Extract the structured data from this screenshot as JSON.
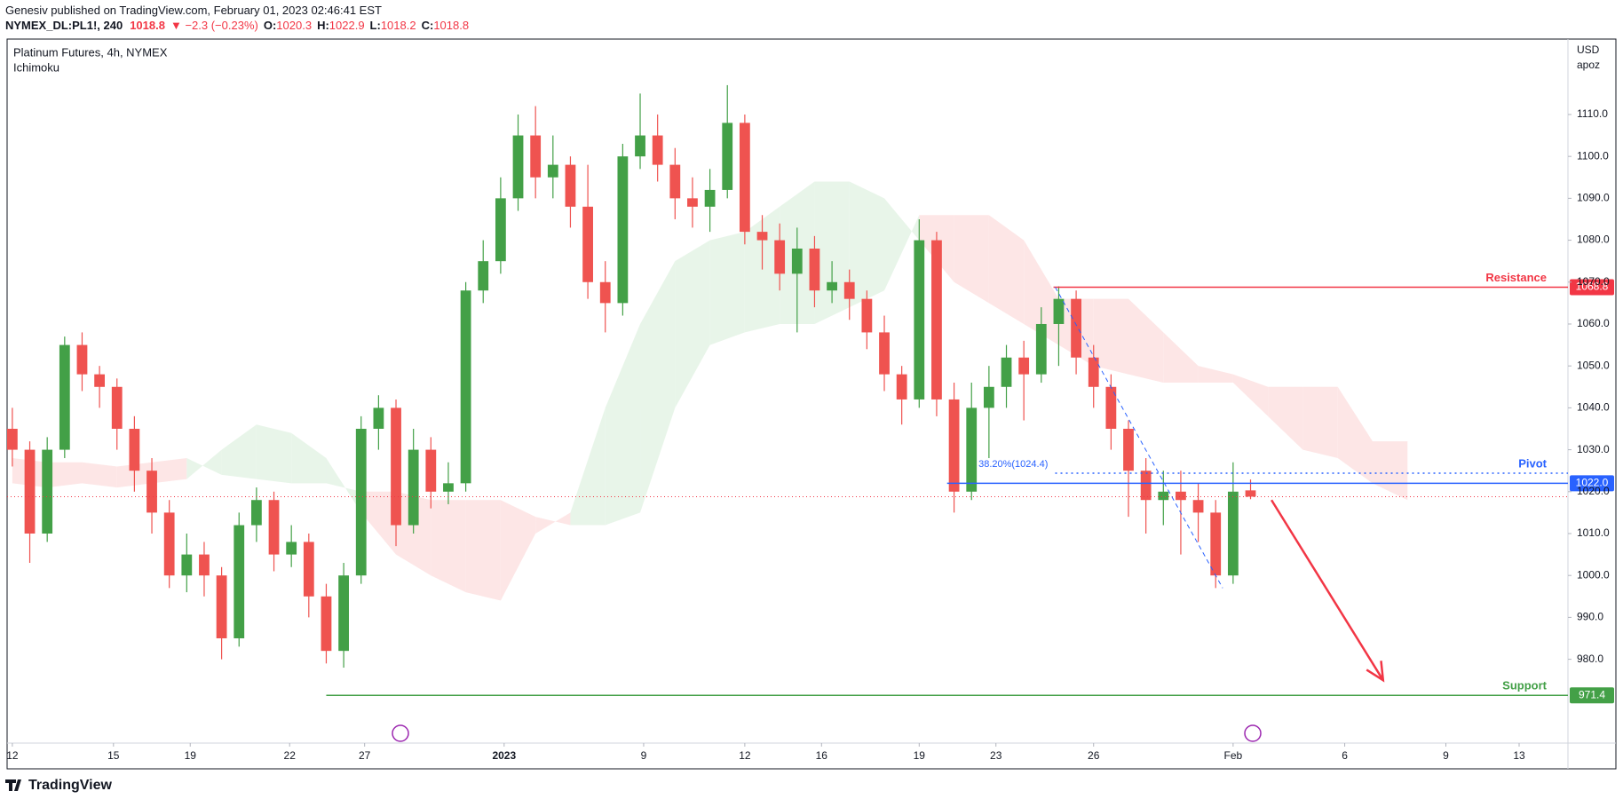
{
  "header": {
    "publisher": "Genesiv published on TradingView.com, February 01, 2023 02:46:41 EST",
    "symbol": "NYMEX_DL:PL1!, 240",
    "price": 1018.8,
    "change": "▼ −2.3 (−0.23%)",
    "ohlc": [
      {
        "label": "O:",
        "value": 1020.3
      },
      {
        "label": "H:",
        "value": 1022.9
      },
      {
        "label": "L:",
        "value": 1018.2
      },
      {
        "label": "C:",
        "value": 1018.8
      }
    ]
  },
  "footer": {
    "brand": "TradingView"
  },
  "chart_data": {
    "type": "candlestick",
    "title": "Platinum Futures, 4h, NYMEX",
    "indicator": "Ichimoku",
    "currency": "USD",
    "author_tag": "apoz",
    "up_color": "#43a047",
    "down_color": "#ef5350",
    "x": [
      0,
      0.5,
      1,
      1.5,
      2,
      2.5,
      3,
      3.5,
      4,
      4.5,
      5,
      5.5,
      6,
      6.5,
      7,
      7.5,
      8,
      8.5,
      9,
      9.5,
      10,
      10.5,
      11,
      11.5,
      12,
      12.5,
      13,
      13.5,
      14,
      14.5,
      15,
      15.5,
      16,
      16.5,
      17,
      17.5,
      18,
      18.5,
      19,
      19.5,
      20,
      20.5,
      21,
      21.5,
      22,
      22.5,
      23,
      23.5,
      24,
      24.5,
      25,
      25.5,
      26,
      26.5,
      27,
      27.5,
      28,
      28.5,
      29,
      29.5,
      30,
      30.5,
      31,
      31.5,
      32,
      32.5,
      33,
      33.5,
      34,
      34.5,
      35,
      35.5
    ],
    "open": [
      1035,
      1030,
      1010,
      1030,
      1055,
      1048,
      1045,
      1035,
      1025,
      1015,
      1000,
      1005,
      1000,
      985,
      1012,
      1018,
      1005,
      1008,
      995,
      982,
      1000,
      1035,
      1040,
      1012,
      1030,
      1020,
      1022,
      1068,
      1075,
      1090,
      1105,
      1095,
      1098,
      1088,
      1070,
      1065,
      1100,
      1105,
      1098,
      1090,
      1088,
      1092,
      1108,
      1082,
      1080,
      1072,
      1078,
      1068,
      1070,
      1066,
      1058,
      1048,
      1042,
      1080,
      1042,
      1020,
      1040,
      1045,
      1052,
      1048,
      1060,
      1066,
      1052,
      1045,
      1035,
      1025,
      1018,
      1020,
      1018,
      1015,
      1000,
      1020.3
    ],
    "high": [
      1040,
      1032,
      1033,
      1057,
      1058,
      1050,
      1047,
      1038,
      1028,
      1018,
      1010,
      1008,
      1002,
      1015,
      1021,
      1020,
      1012,
      1010,
      998,
      1003,
      1038,
      1043,
      1042,
      1035,
      1033,
      1027,
      1070,
      1080,
      1095,
      1110,
      1112,
      1105,
      1100,
      1098,
      1075,
      1103,
      1115,
      1110,
      1102,
      1095,
      1097,
      1117,
      1110,
      1086,
      1084,
      1083,
      1081,
      1075,
      1073,
      1068,
      1062,
      1050,
      1085,
      1082,
      1046,
      1046,
      1050,
      1055,
      1056,
      1064,
      1069,
      1068,
      1055,
      1048,
      1037,
      1028,
      1025,
      1025,
      1022,
      1018,
      1027,
      1022.9
    ],
    "low": [
      1026,
      1003,
      1008,
      1028,
      1044,
      1040,
      1030,
      1020,
      1010,
      997,
      996,
      995,
      980,
      983,
      1008,
      1001,
      1002,
      990,
      979,
      978,
      998,
      1030,
      1007,
      1010,
      1016,
      1017,
      1020,
      1065,
      1072,
      1087,
      1090,
      1090,
      1083,
      1066,
      1058,
      1062,
      1097,
      1094,
      1085,
      1083,
      1082,
      1090,
      1079,
      1073,
      1068,
      1058,
      1064,
      1065,
      1061,
      1054,
      1044,
      1036,
      1040,
      1038,
      1015,
      1018,
      1028,
      1040,
      1037,
      1046,
      1050,
      1048,
      1040,
      1030,
      1014,
      1010,
      1012,
      1005,
      1008,
      997,
      998,
      1018.2
    ],
    "close": [
      1030,
      1010,
      1030,
      1055,
      1048,
      1045,
      1035,
      1025,
      1015,
      1000,
      1005,
      1000,
      985,
      1012,
      1018,
      1005,
      1008,
      995,
      982,
      1000,
      1035,
      1040,
      1012,
      1030,
      1020,
      1022,
      1068,
      1075,
      1090,
      1105,
      1095,
      1098,
      1088,
      1070,
      1065,
      1100,
      1105,
      1098,
      1090,
      1088,
      1092,
      1108,
      1082,
      1080,
      1072,
      1078,
      1068,
      1070,
      1066,
      1058,
      1048,
      1042,
      1080,
      1042,
      1020,
      1040,
      1045,
      1052,
      1048,
      1060,
      1066,
      1052,
      1045,
      1035,
      1025,
      1018,
      1020,
      1018,
      1015,
      1000,
      1020,
      1018.8
    ],
    "cloud": {
      "up_color": "#e8f5e9",
      "down_color": "#fde6e6",
      "x": [
        0,
        1,
        2,
        3,
        4,
        5,
        6,
        7,
        8,
        9,
        10,
        11,
        12,
        13,
        14,
        15,
        16,
        17,
        18,
        19,
        20,
        21,
        22,
        23,
        24,
        25,
        26,
        27,
        28,
        29,
        30,
        31,
        32,
        33,
        34,
        35,
        36,
        37,
        38,
        39,
        40
      ],
      "span_a": [
        1022,
        1021,
        1022,
        1021,
        1022,
        1023,
        1030,
        1036,
        1034,
        1028,
        1015,
        1005,
        1000,
        996,
        994,
        1010,
        1015,
        1040,
        1060,
        1075,
        1080,
        1082,
        1088,
        1094,
        1094,
        1090,
        1080,
        1070,
        1065,
        1060,
        1055,
        1050,
        1048,
        1046,
        1046,
        1046,
        1038,
        1030,
        1028,
        1022,
        1018
      ],
      "span_b": [
        1028,
        1027,
        1027,
        1026,
        1027,
        1028,
        1024,
        1023,
        1022,
        1022,
        1020,
        1020,
        1018,
        1018,
        1018,
        1014,
        1012,
        1012,
        1015,
        1040,
        1055,
        1058,
        1060,
        1060,
        1064,
        1068,
        1086,
        1086,
        1086,
        1080,
        1066,
        1066,
        1066,
        1058,
        1050,
        1048,
        1045,
        1045,
        1045,
        1032,
        1032
      ]
    },
    "resistance": {
      "label": "Resistance",
      "value": 1068.8,
      "from": 29.85,
      "color": "#f23645"
    },
    "support": {
      "label": "Support",
      "value": 971.4,
      "from": 9.0,
      "color": "#43a047"
    },
    "pivot": {
      "label": "Pivot",
      "value": 1024.4,
      "from": 29.9,
      "color": "#2962ff"
    },
    "pivot_base": {
      "value": 1022.0,
      "value_label": "1022.0",
      "from": 26.8,
      "color": "#2962ff"
    },
    "fib": {
      "label": "38.20%(1024.4)",
      "x": 27.7,
      "y": 1026.5,
      "from": [
        29.9,
        1068.8
      ],
      "to": [
        34.7,
        997
      ]
    },
    "last_price": {
      "value": 1018.8,
      "color": "#f23645"
    },
    "arrow": {
      "from": [
        36.1,
        1018
      ],
      "to": [
        39.3,
        975
      ],
      "color": "#f23645"
    },
    "xlim": [
      -0.15,
      44.6
    ],
    "ylim": [
      960,
      1128
    ],
    "xticks": [
      {
        "value": 0,
        "label": "12"
      },
      {
        "value": 2.9,
        "label": "15"
      },
      {
        "value": 5.1,
        "label": "19"
      },
      {
        "value": 7.95,
        "label": "22"
      },
      {
        "value": 10.1,
        "label": "27"
      },
      {
        "value": 14.1,
        "label": "2023"
      },
      {
        "value": 18.1,
        "label": "9"
      },
      {
        "value": 21.0,
        "label": "12"
      },
      {
        "value": 23.2,
        "label": "16"
      },
      {
        "value": 26.0,
        "label": "19"
      },
      {
        "value": 28.2,
        "label": "23"
      },
      {
        "value": 31.0,
        "label": "26"
      },
      {
        "value": 35.0,
        "label": "Feb"
      },
      {
        "value": 38.2,
        "label": "6"
      },
      {
        "value": 41.1,
        "label": "9"
      },
      {
        "value": 43.2,
        "label": "13"
      }
    ],
    "yticks": [
      {
        "value": 980,
        "label": "980.0"
      },
      {
        "value": 990,
        "label": "990.0"
      },
      {
        "value": 1000,
        "label": "1000.0"
      },
      {
        "value": 1010,
        "label": "1010.0"
      },
      {
        "value": 1020,
        "label": "1020.0"
      },
      {
        "value": 1030,
        "label": "1030.0"
      },
      {
        "value": 1040,
        "label": "1040.0"
      },
      {
        "value": 1050,
        "label": "1050.0"
      },
      {
        "value": 1060,
        "label": "1060.0"
      },
      {
        "value": 1070,
        "label": "1070.0"
      },
      {
        "value": 1080,
        "label": "1080.0"
      },
      {
        "value": 1090,
        "label": "1090.0"
      },
      {
        "value": 1100,
        "label": "1100.0"
      },
      {
        "value": 1110,
        "label": "1110.0"
      }
    ]
  }
}
